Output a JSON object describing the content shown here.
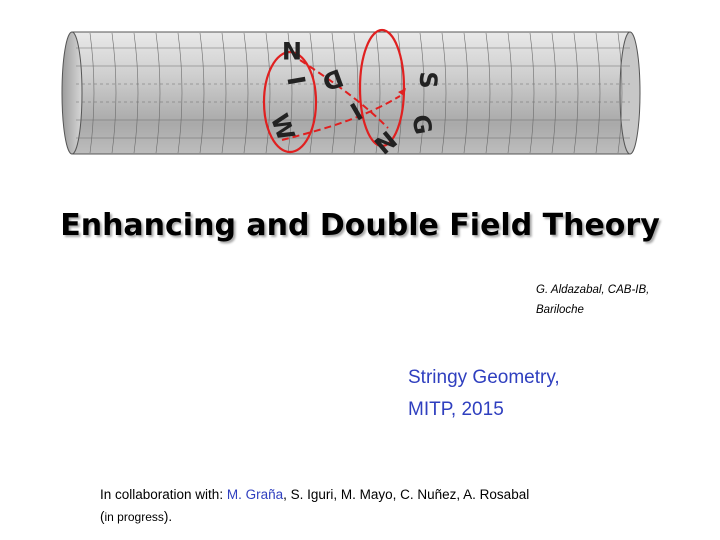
{
  "logo": {
    "letters": [
      "W",
      "I",
      "N",
      "D",
      "I",
      "N",
      "G",
      "S"
    ],
    "tube_color": "#c9c9c9",
    "winding_color": "#e02020",
    "letter_color": "#222222"
  },
  "title": "Enhancing and Double Field Theory",
  "author": {
    "line1": "G. Aldazabal, CAB-IB,",
    "line2": "Bariloche"
  },
  "venue": {
    "line1": "Stringy Geometry,",
    "line2": "MITP, 2015",
    "color": "#2f3fbf"
  },
  "collab": {
    "prefix": "In collaboration with: ",
    "highlight": "M. Graña",
    "rest": ", S. Iguri, M. Mayo, C. Nuñez,  A. Rosabal",
    "note_open": "(",
    "note": "in progress",
    "note_close": ").",
    "highlight_color": "#2f3fbf"
  }
}
